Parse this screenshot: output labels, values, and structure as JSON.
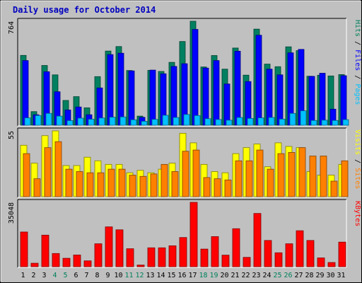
{
  "chart_data": {
    "type": "bar",
    "title": "Daily usage for October 2014",
    "categories": [
      "1",
      "2",
      "3",
      "4",
      "5",
      "6",
      "7",
      "8",
      "9",
      "10",
      "11",
      "12",
      "13",
      "14",
      "15",
      "16",
      "17",
      "18",
      "19",
      "20",
      "21",
      "22",
      "23",
      "24",
      "25",
      "26",
      "27",
      "28",
      "29",
      "30",
      "31"
    ],
    "weekend_days": [
      "4",
      "5",
      "11",
      "12",
      "18",
      "19",
      "25",
      "26"
    ],
    "panels": [
      {
        "name": "hits_files_pages",
        "max_label": "764",
        "ylim": [
          0,
          764
        ],
        "right_label_parts": [
          {
            "text": "Pages",
            "color": "#00c0ff"
          },
          {
            "text": " / ",
            "color": "#000000"
          },
          {
            "text": "Files",
            "color": "#0000ff"
          },
          {
            "text": " / ",
            "color": "#000000"
          },
          {
            "text": "Hits",
            "color": "#00805c"
          }
        ],
        "series": [
          {
            "name": "Hits",
            "color": "#008060",
            "values": [
              513,
              100,
              439,
              370,
              182,
              210,
              128,
              357,
              545,
              578,
              402,
              67,
              403,
              395,
              462,
              615,
              764,
              428,
              512,
              412,
              567,
              368,
              706,
              449,
              430,
              576,
              548,
              360,
              367,
              362,
              372
            ]
          },
          {
            "name": "Files",
            "color": "#0000ff",
            "values": [
              475,
              77,
              393,
              246,
              112,
              134,
              77,
              274,
              519,
              529,
              399,
              58,
              405,
              378,
              432,
              452,
              704,
              420,
              475,
              303,
              544,
              321,
              661,
              412,
              370,
              532,
              557,
              359,
              382,
              118,
              364
            ]
          },
          {
            "name": "Pages",
            "color": "#00c0ff",
            "values": [
              54,
              71,
              87,
              67,
              34,
              52,
              44,
              53,
              59,
              61,
              40,
              29,
              43,
              73,
              57,
              79,
              71,
              48,
              42,
              37,
              57,
              50,
              54,
              57,
              45,
              87,
              106,
              35,
              37,
              35,
              41
            ]
          }
        ]
      },
      {
        "name": "visits_sites",
        "max_label": "55",
        "ylim": [
          0,
          55
        ],
        "right_label_parts": [
          {
            "text": "Sites",
            "color": "#ff8000"
          },
          {
            "text": " / ",
            "color": "#000000"
          },
          {
            "text": "Visits",
            "color": "#ffff00"
          }
        ],
        "series": [
          {
            "name": "Visits",
            "color": "#ffff00",
            "values": [
              43,
              28,
              51,
              55,
              26,
              26,
              33,
              30,
              27,
              27,
              20,
              22,
              20,
              23,
              28,
              53,
              45,
              27,
              21,
              20,
              36,
              41,
              44,
              25,
              45,
              42,
              41,
              21,
              18,
              18,
              27
            ]
          },
          {
            "name": "Sites",
            "color": "#ff8000",
            "values": [
              36,
              15,
              41,
              46,
              23,
              21,
              20,
              20,
              23,
              23,
              18,
              17,
              19,
              27,
              21,
              38,
              39,
              16,
              15,
              14,
              30,
              30,
              39,
              23,
              36,
              37,
              41,
              34,
              34,
              13,
              30
            ]
          }
        ]
      },
      {
        "name": "kbytes",
        "max_label": "35048",
        "ylim": [
          0,
          35048
        ],
        "right_label_parts": [
          {
            "text": "KBytes",
            "color": "#ff0000"
          }
        ],
        "series": [
          {
            "name": "KBytes",
            "color": "#ff0000",
            "values": [
              18900,
              1900,
              17200,
              7200,
              4600,
              6400,
              3200,
              12500,
              21700,
              20100,
              9800,
              900,
              10300,
              10300,
              11400,
              15900,
              35048,
              9600,
              16400,
              6300,
              20700,
              5100,
              29000,
              14300,
              7600,
              12500,
              19600,
              14300,
              4800,
              2300,
              13400
            ]
          }
        ]
      }
    ]
  }
}
